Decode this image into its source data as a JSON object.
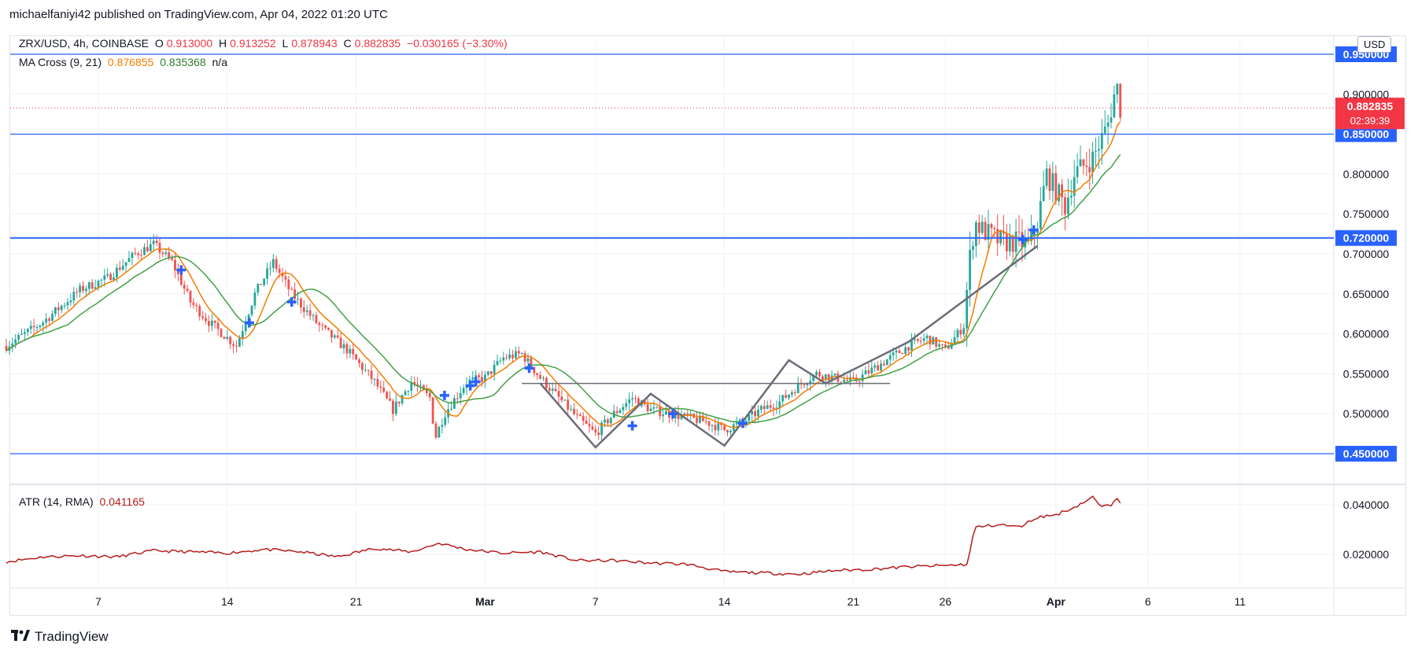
{
  "publisher": "michaelfaniyi42 published on TradingView.com, Apr 04, 2022 01:20 UTC",
  "legend": {
    "symbol": "ZRX/USD, 4h, COINBASE",
    "open_label": "O",
    "open": "0.913000",
    "high_label": "H",
    "high": "0.913252",
    "low_label": "L",
    "low": "0.878943",
    "close_label": "C",
    "close": "0.882835",
    "change": "−0.030165 (−3.30%)",
    "ma_name": "MA Cross (9, 21)",
    "ma_fast": "0.876855",
    "ma_slow": "0.835368",
    "ma_na": "n/a",
    "atr_name": "ATR (14, RMA)",
    "atr_value": "0.041165"
  },
  "currency_badge": "USD",
  "brand": "TradingView",
  "icons": {
    "logo": "tradingview-logo-icon"
  },
  "colors": {
    "up": "#26a69a",
    "down": "#ef5350",
    "ma_fast": "#f57c00",
    "ma_slow": "#43a047",
    "level_line": "#2962ff",
    "atr": "#b71c1c",
    "pattern": "#6a6d78",
    "last_price": "#f23645"
  },
  "chart_data": {
    "type": "candlestick",
    "symbol": "ZRX/USD",
    "timeframe": "4h",
    "exchange": "COINBASE",
    "ylim": [
      0.42,
      0.96
    ],
    "y_ticks": [
      {
        "value": 0.9,
        "label": "0.900000"
      },
      {
        "value": 0.8,
        "label": "0.800000"
      },
      {
        "value": 0.75,
        "label": "0.750000"
      },
      {
        "value": 0.7,
        "label": "0.700000"
      },
      {
        "value": 0.65,
        "label": "0.650000"
      },
      {
        "value": 0.6,
        "label": "0.600000"
      },
      {
        "value": 0.55,
        "label": "0.550000"
      },
      {
        "value": 0.5,
        "label": "0.500000"
      }
    ],
    "x_ticks": [
      {
        "day": 7,
        "label": "7"
      },
      {
        "day": 14,
        "label": "14"
      },
      {
        "day": 21,
        "label": "21"
      },
      {
        "day": 28,
        "label": "Mar",
        "bold": true
      },
      {
        "day": 34,
        "label": "7"
      },
      {
        "day": 41,
        "label": "14"
      },
      {
        "day": 48,
        "label": "21"
      },
      {
        "day": 53,
        "label": "26"
      },
      {
        "day": 59,
        "label": "Apr",
        "bold": true
      },
      {
        "day": 64,
        "label": "6"
      },
      {
        "day": 69,
        "label": "11"
      }
    ],
    "price_path": [
      [
        2.0,
        0.585
      ],
      [
        4.0,
        0.615
      ],
      [
        6.0,
        0.655
      ],
      [
        7.5,
        0.67
      ],
      [
        9.0,
        0.7
      ],
      [
        10.0,
        0.712
      ],
      [
        11.0,
        0.69
      ],
      [
        12.0,
        0.64
      ],
      [
        13.0,
        0.615
      ],
      [
        14.5,
        0.585
      ],
      [
        15.5,
        0.65
      ],
      [
        16.5,
        0.69
      ],
      [
        17.5,
        0.65
      ],
      [
        19.0,
        0.61
      ],
      [
        20.5,
        0.58
      ],
      [
        22.0,
        0.54
      ],
      [
        23.0,
        0.505
      ],
      [
        24.0,
        0.54
      ],
      [
        25.0,
        0.52
      ],
      [
        25.3,
        0.47
      ],
      [
        25.8,
        0.5
      ],
      [
        27.0,
        0.54
      ],
      [
        28.0,
        0.545
      ],
      [
        29.0,
        0.57
      ],
      [
        30.0,
        0.575
      ],
      [
        31.0,
        0.545
      ],
      [
        32.0,
        0.52
      ],
      [
        33.0,
        0.495
      ],
      [
        34.0,
        0.475
      ],
      [
        35.0,
        0.5
      ],
      [
        36.0,
        0.52
      ],
      [
        37.0,
        0.505
      ],
      [
        38.0,
        0.5
      ],
      [
        39.0,
        0.495
      ],
      [
        40.0,
        0.49
      ],
      [
        41.0,
        0.48
      ],
      [
        42.0,
        0.49
      ],
      [
        43.0,
        0.505
      ],
      [
        44.0,
        0.515
      ],
      [
        45.0,
        0.535
      ],
      [
        46.0,
        0.55
      ],
      [
        47.0,
        0.545
      ],
      [
        48.0,
        0.54
      ],
      [
        49.0,
        0.555
      ],
      [
        50.0,
        0.57
      ],
      [
        51.0,
        0.585
      ],
      [
        52.0,
        0.595
      ],
      [
        53.0,
        0.58
      ],
      [
        54.0,
        0.61
      ],
      [
        54.3,
        0.69
      ],
      [
        54.6,
        0.74
      ],
      [
        55.0,
        0.73
      ],
      [
        56.0,
        0.715
      ],
      [
        57.0,
        0.715
      ],
      [
        57.5,
        0.71
      ],
      [
        58.0,
        0.74
      ],
      [
        58.5,
        0.8
      ],
      [
        59.5,
        0.76
      ],
      [
        60.0,
        0.8
      ],
      [
        61.0,
        0.82
      ],
      [
        61.8,
        0.86
      ],
      [
        62.3,
        0.913
      ],
      [
        62.5,
        0.8828
      ]
    ],
    "moving_averages": [
      {
        "name": "MA 9",
        "period": 9,
        "color": "#f57c00",
        "last": 0.876855
      },
      {
        "name": "MA 21",
        "period": 21,
        "color": "#43a047",
        "last": 0.835368
      }
    ],
    "levels": [
      {
        "value": 0.95,
        "label": "0.950000"
      },
      {
        "value": 0.85,
        "label": "0.850000"
      },
      {
        "value": 0.72,
        "label": "0.720000"
      },
      {
        "value": 0.45,
        "label": "0.450000"
      }
    ],
    "last_price": {
      "value": 0.882835,
      "label": "0.882835",
      "countdown": "02:39:39"
    },
    "neckline": {
      "x1": 30.0,
      "x2": 50.0,
      "y": 0.538
    },
    "pattern_zigzag": [
      [
        31.0,
        0.538
      ],
      [
        34.0,
        0.458
      ],
      [
        37.0,
        0.525
      ],
      [
        41.0,
        0.46
      ],
      [
        44.5,
        0.567
      ],
      [
        46.5,
        0.538
      ],
      [
        51.0,
        0.59
      ],
      [
        58.0,
        0.71
      ]
    ],
    "cross_markers": [
      {
        "day": 11.5,
        "value": 0.68
      },
      {
        "day": 15.2,
        "value": 0.614
      },
      {
        "day": 17.5,
        "value": 0.64
      },
      {
        "day": 25.8,
        "value": 0.523
      },
      {
        "day": 27.2,
        "value": 0.535
      },
      {
        "day": 27.5,
        "value": 0.54
      },
      {
        "day": 30.4,
        "value": 0.557
      },
      {
        "day": 36.0,
        "value": 0.485
      },
      {
        "day": 38.2,
        "value": 0.5
      },
      {
        "day": 42.0,
        "value": 0.488
      },
      {
        "day": 57.2,
        "value": 0.718
      },
      {
        "day": 57.8,
        "value": 0.73
      }
    ],
    "atr": {
      "name": "ATR (14, RMA)",
      "ylim": [
        0.0,
        0.046
      ],
      "y_ticks": [
        {
          "value": 0.04,
          "label": "0.040000"
        },
        {
          "value": 0.02,
          "label": "0.020000"
        }
      ],
      "last": 0.041165,
      "path": [
        [
          2.0,
          0.017
        ],
        [
          4.0,
          0.019
        ],
        [
          6.0,
          0.0195
        ],
        [
          8.0,
          0.019
        ],
        [
          10.0,
          0.0215
        ],
        [
          12.0,
          0.021
        ],
        [
          14.0,
          0.0205
        ],
        [
          16.0,
          0.022
        ],
        [
          18.0,
          0.021
        ],
        [
          20.0,
          0.019
        ],
        [
          22.0,
          0.0225
        ],
        [
          24.0,
          0.021
        ],
        [
          25.5,
          0.0245
        ],
        [
          27.0,
          0.022
        ],
        [
          29.0,
          0.0205
        ],
        [
          31.0,
          0.021
        ],
        [
          33.0,
          0.0175
        ],
        [
          35.0,
          0.0175
        ],
        [
          37.0,
          0.0165
        ],
        [
          39.0,
          0.016
        ],
        [
          41.0,
          0.013
        ],
        [
          43.0,
          0.0125
        ],
        [
          45.0,
          0.012
        ],
        [
          47.0,
          0.0135
        ],
        [
          49.0,
          0.014
        ],
        [
          51.0,
          0.015
        ],
        [
          53.0,
          0.0155
        ],
        [
          54.2,
          0.016
        ],
        [
          54.6,
          0.031
        ],
        [
          56.0,
          0.032
        ],
        [
          57.0,
          0.031
        ],
        [
          58.0,
          0.035
        ],
        [
          59.0,
          0.036
        ],
        [
          60.0,
          0.039
        ],
        [
          61.0,
          0.043
        ],
        [
          61.5,
          0.039
        ],
        [
          62.0,
          0.04
        ],
        [
          62.3,
          0.0435
        ],
        [
          62.5,
          0.0412
        ]
      ]
    }
  }
}
